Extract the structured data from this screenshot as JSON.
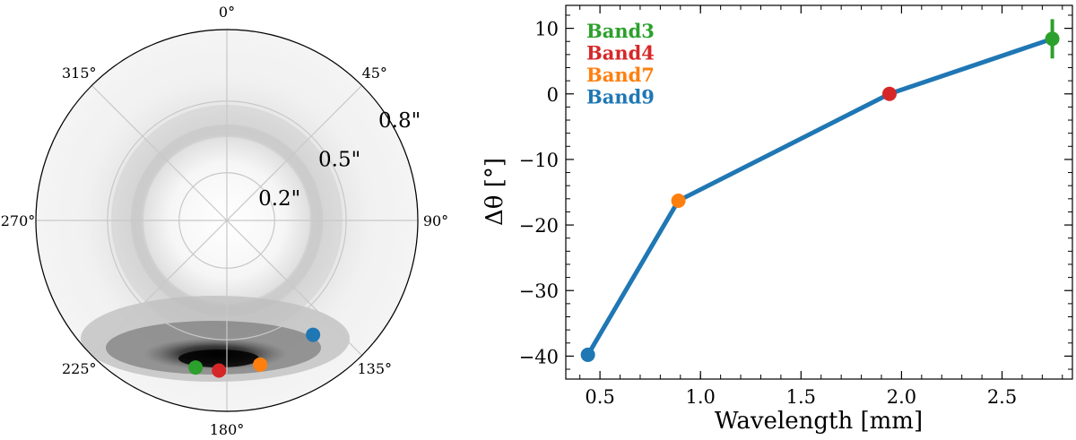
{
  "chart_data": [
    {
      "type": "polar",
      "title": "",
      "angle_direction": "clockwise",
      "zero_location": "top",
      "angle_tick_labels": [
        "0°",
        "45°",
        "90°",
        "135°",
        "180°",
        "225°",
        "270°",
        "315°"
      ],
      "angle_ticks_deg": [
        0,
        45,
        90,
        135,
        180,
        225,
        270,
        315
      ],
      "radial_tick_labels": [
        "0.2\"",
        "0.5\"",
        "0.8\""
      ],
      "radial_ticks": [
        0.2,
        0.5,
        0.8
      ],
      "rmax": 0.8,
      "background": "grayscale filled contour of intensity (ring at ~0.45\", brightest near 180°)",
      "points": [
        {
          "name": "Band3",
          "theta_deg": 192,
          "r": 0.63,
          "color": "#2ca02c"
        },
        {
          "name": "Band4",
          "theta_deg": 183,
          "r": 0.63,
          "color": "#d62728"
        },
        {
          "name": "Band7",
          "theta_deg": 167,
          "r": 0.62,
          "color": "#ff7f0e"
        },
        {
          "name": "Band9",
          "theta_deg": 143,
          "r": 0.6,
          "color": "#1f77b4"
        }
      ]
    },
    {
      "type": "line",
      "title": "",
      "xlabel": "Wavelength [mm]",
      "ylabel": "Δθ [°]",
      "xlim": [
        0.33,
        2.85
      ],
      "ylim": [
        -43.5,
        13.5
      ],
      "xticks": [
        0.5,
        1.0,
        1.5,
        2.0,
        2.5
      ],
      "xtick_labels": [
        "0.5",
        "1.0",
        "1.5",
        "2.0",
        "2.5"
      ],
      "yticks": [
        -40,
        -30,
        -20,
        -10,
        0,
        10
      ],
      "ytick_labels": [
        "−40",
        "−30",
        "−20",
        "−10",
        "0",
        "10"
      ],
      "line_color": "#1f77b4",
      "points": [
        {
          "name": "Band9",
          "x": 0.44,
          "y": -39.8,
          "color": "#1f77b4"
        },
        {
          "name": "Band7",
          "x": 0.89,
          "y": -16.3,
          "color": "#ff7f0e"
        },
        {
          "name": "Band4",
          "x": 1.94,
          "y": 0.0,
          "color": "#d62728"
        },
        {
          "name": "Band3",
          "x": 2.75,
          "y": 8.4,
          "color": "#2ca02c",
          "yerr": 3.0
        }
      ],
      "legend": [
        {
          "label": "Band3",
          "color": "#2ca02c"
        },
        {
          "label": "Band4",
          "color": "#d62728"
        },
        {
          "label": "Band7",
          "color": "#ff7f0e"
        },
        {
          "label": "Band9",
          "color": "#1f77b4"
        }
      ],
      "legend_position": "top-left"
    }
  ]
}
